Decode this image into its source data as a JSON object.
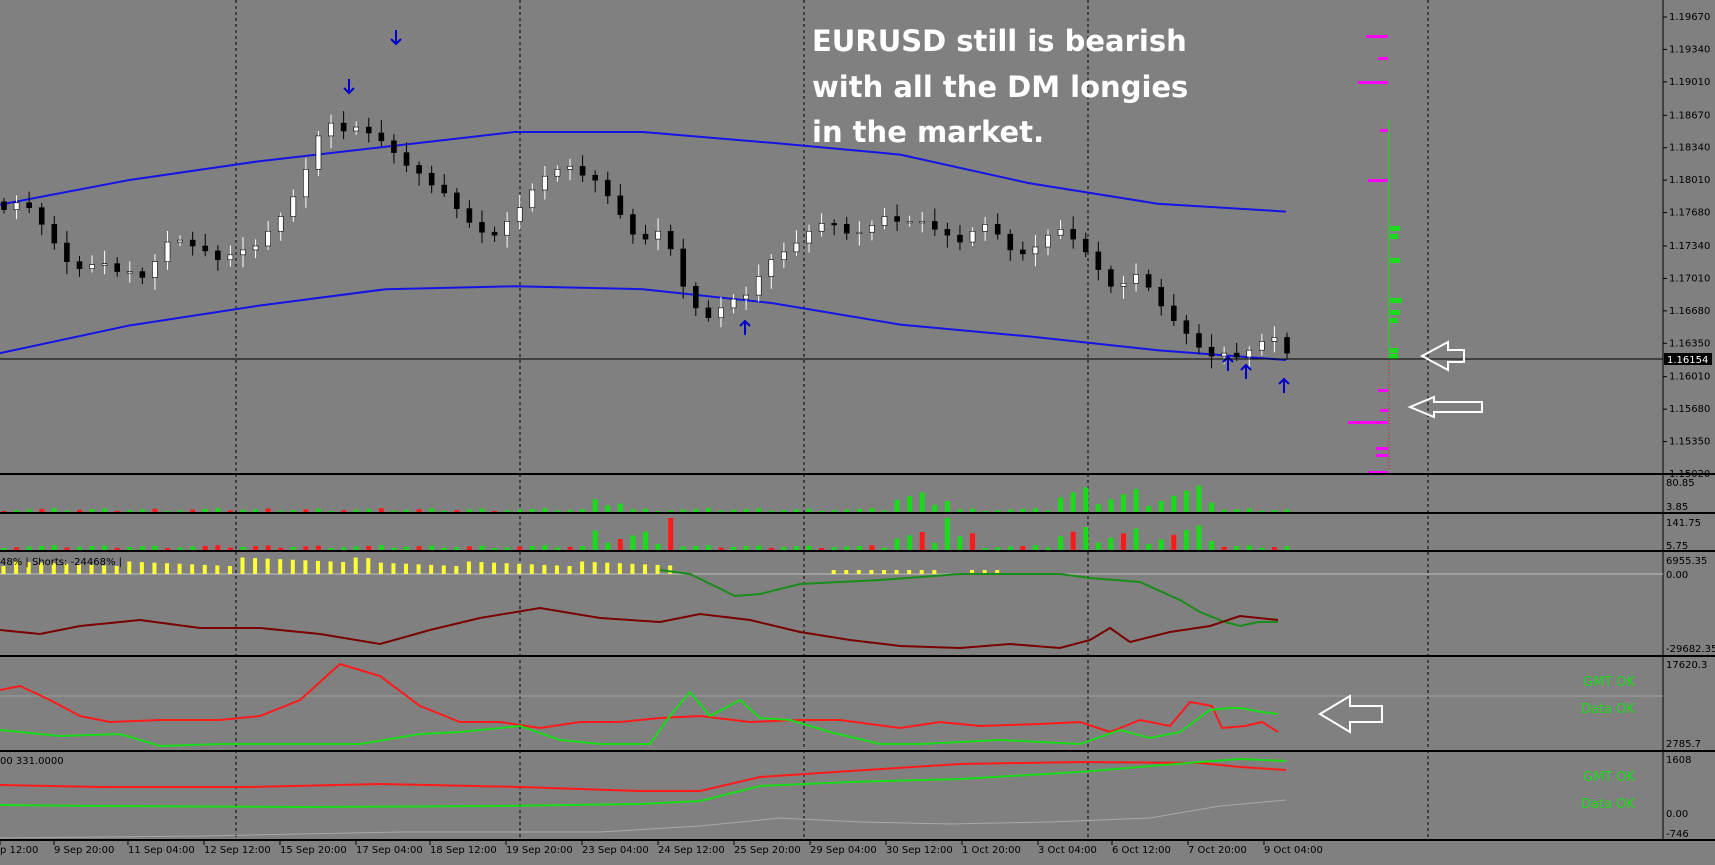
{
  "chart_data": {
    "type": "candlestick",
    "symbol": "EURUSD",
    "annotation": [
      "EURUSD still is bearish",
      "with all the DM longies",
      "in the market."
    ],
    "current_price": "1.16154",
    "price_axis": [
      "1.19670",
      "1.19340",
      "1.19010",
      "1.18670",
      "1.18340",
      "1.18010",
      "1.17680",
      "1.17340",
      "1.17010",
      "1.16680",
      "1.16350",
      "1.16010",
      "1.15680",
      "1.15350",
      "1.15020"
    ],
    "price_range": [
      1.1502,
      1.1967
    ],
    "time_axis": [
      "p 12:00",
      "9 Sep 20:00",
      "11 Sep 04:00",
      "12 Sep 12:00",
      "15 Sep 20:00",
      "17 Sep 04:00",
      "18 Sep 12:00",
      "19 Sep 20:00",
      "23 Sep 04:00",
      "24 Sep 12:00",
      "25 Sep 20:00",
      "29 Sep 04:00",
      "30 Sep 12:00",
      "1 Oct 20:00",
      "3 Oct 04:00",
      "6 Oct 12:00",
      "7 Oct 20:00",
      "9 Oct 04:00"
    ],
    "price_path": [
      1.1771,
      1.1778,
      1.1773,
      1.1756,
      1.1737,
      1.1718,
      1.1711,
      1.1715,
      1.1716,
      1.1708,
      1.1708,
      1.1702,
      1.1718,
      1.1738,
      1.174,
      1.1734,
      1.1729,
      1.172,
      1.1725,
      1.173,
      1.1734,
      1.1749,
      1.1764,
      1.1784,
      1.1812,
      1.1846,
      1.1859,
      1.1851,
      1.1855,
      1.1849,
      1.1841,
      1.1829,
      1.1816,
      1.1808,
      1.1796,
      1.1788,
      1.1772,
      1.1758,
      1.1748,
      1.1745,
      1.1759,
      1.1773,
      1.1791,
      1.1805,
      1.1812,
      1.1815,
      1.1806,
      1.1801,
      1.1785,
      1.1766,
      1.1746,
      1.1741,
      1.1749,
      1.1731,
      1.1693,
      1.1671,
      1.1661,
      1.1671,
      1.168,
      1.1684,
      1.1703,
      1.172,
      1.1728,
      1.1737,
      1.1749,
      1.1757,
      1.1756,
      1.1747,
      1.1748,
      1.1755,
      1.1764,
      1.1759,
      1.1759,
      1.1759,
      1.1751,
      1.1745,
      1.1738,
      1.1749,
      1.1756,
      1.1746,
      1.173,
      1.1726,
      1.1733,
      1.1745,
      1.1751,
      1.1741,
      1.1728,
      1.171,
      1.1693,
      1.1696,
      1.1705,
      1.1692,
      1.1673,
      1.1658,
      1.1645,
      1.1631,
      1.1622,
      1.1625,
      1.1621,
      1.1628,
      1.1637,
      1.1641,
      1.1625
    ],
    "band_upper": [
      1.1776,
      1.1801,
      1.182,
      1.1835,
      1.185,
      1.185,
      1.1839,
      1.1827,
      1.1798,
      1.1777,
      1.1769
    ],
    "band_lower": [
      1.1625,
      1.1653,
      1.1673,
      1.169,
      1.1693,
      1.169,
      1.1676,
      1.1654,
      1.1642,
      1.1628,
      1.1618
    ],
    "panels": [
      {
        "labels": [
          "80.85",
          "3.85"
        ]
      },
      {
        "labels": [
          "141.75",
          "5.75"
        ]
      },
      {
        "labels": [
          "6955.35",
          "0.00",
          "-29682.35"
        ],
        "title": "48% | Shorts: -24468% |"
      },
      {
        "labels": [
          "17620.3",
          "2785.7"
        ],
        "status": [
          "GMT OK",
          "Data OK"
        ]
      },
      {
        "labels": [
          "1608",
          "0.00",
          "-746"
        ],
        "title": "00 331.0000",
        "status": [
          "GMT OK",
          "Data OK"
        ]
      }
    ]
  }
}
